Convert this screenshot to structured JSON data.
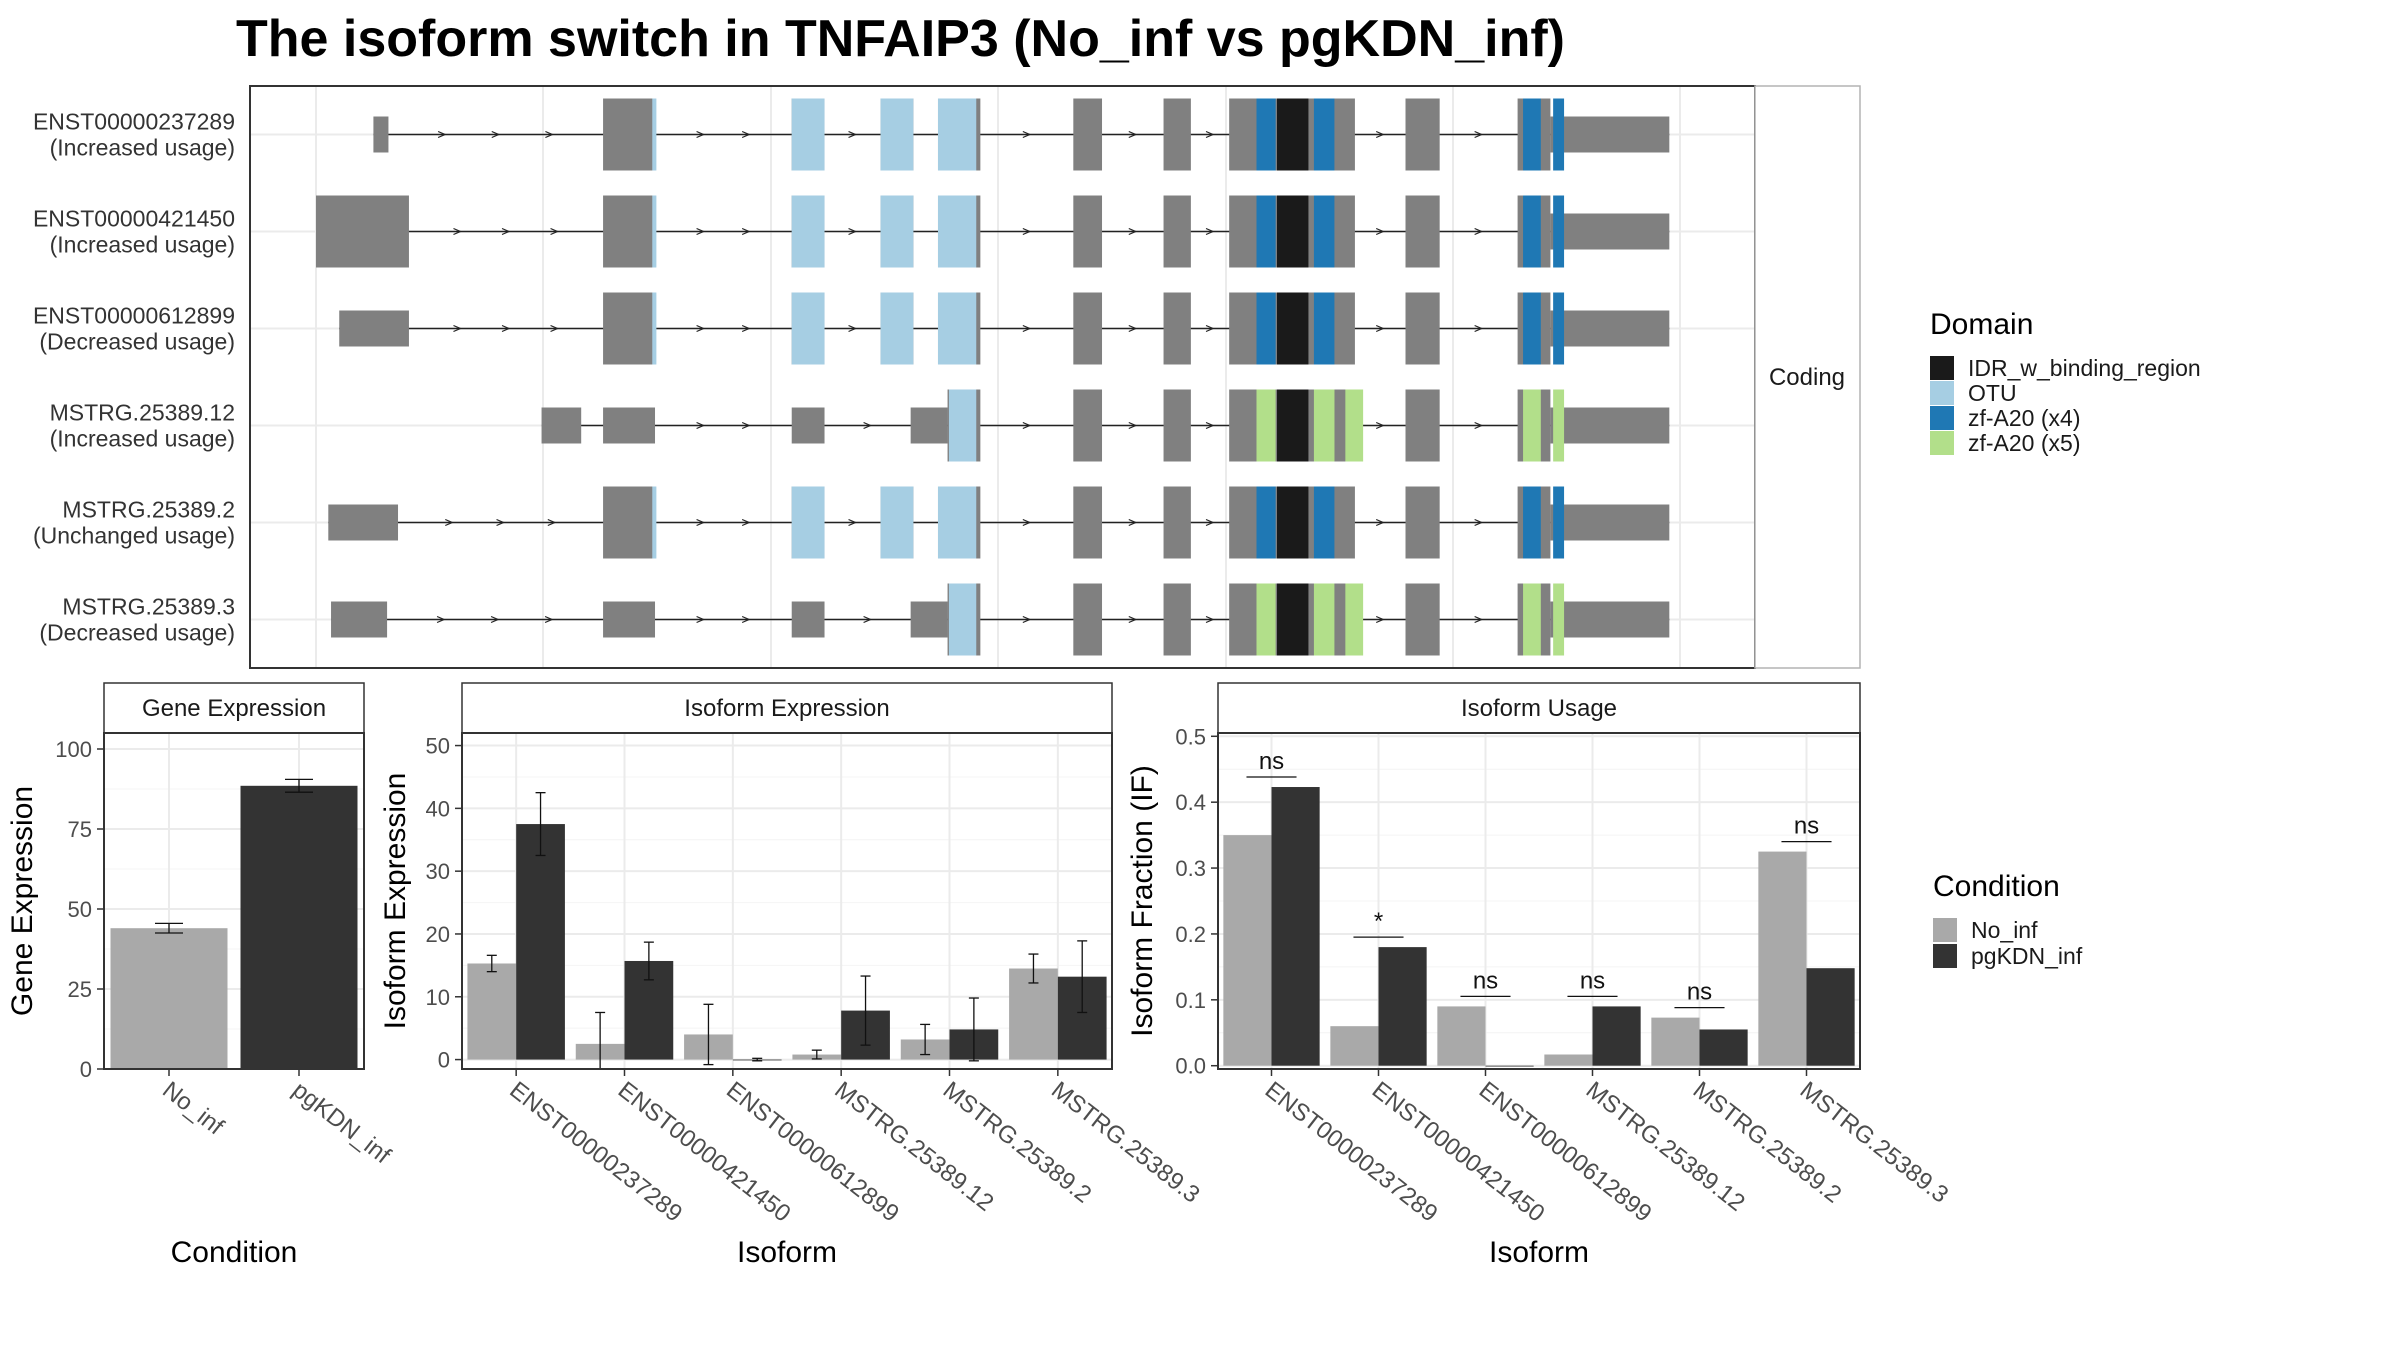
{
  "title": "The isoform switch in TNFAIP3 (No_inf vs pgKDN_inf)",
  "colors": {
    "no_inf": "#a9a9a9",
    "pgkdn_inf": "#333333",
    "exon": "#808080",
    "IDR_w_binding_region": "#1a1a1a",
    "OTU": "#a6cee3",
    "zf-A20 (x4)": "#1f78b4",
    "zf-A20 (x5)": "#b2df8a"
  },
  "chart_data": [
    {
      "type": "diagram",
      "name": "structure",
      "strip_label": "Coding",
      "genome_range": [
        0,
        1000
      ],
      "isoforms": [
        {
          "id": "ENST00000237289",
          "status": "(Increased usage)",
          "exons": [
            [
              42,
              53,
              0.5
            ],
            [
              210,
              248,
              1
            ],
            [
              348,
              372,
              1
            ],
            [
              413,
              437,
              1
            ],
            [
              455,
              486,
              1
            ],
            [
              554,
              575,
              1
            ],
            [
              620,
              640,
              1
            ],
            [
              668,
              760,
              1
            ],
            [
              797,
              822,
              1
            ],
            [
              879,
              903,
              1
            ],
            [
              903,
              990,
              0.5
            ]
          ],
          "domains": [
            [
              246,
              249,
              "OTU"
            ],
            [
              348,
              372,
              "OTU"
            ],
            [
              413,
              437,
              "OTU"
            ],
            [
              455,
              483,
              "OTU"
            ],
            [
              688,
              702,
              "zf-A20 (x4)"
            ],
            [
              703,
              726,
              "IDR_w_binding_region"
            ],
            [
              730,
              745,
              "zf-A20 (x4)"
            ],
            [
              883,
              896,
              "zf-A20 (x4)"
            ],
            [
              905,
              913,
              "zf-A20 (x4)"
            ]
          ]
        },
        {
          "id": "ENST00000421450",
          "status": "(Increased usage)",
          "exons": [
            [
              0,
              68,
              1
            ],
            [
              210,
              248,
              1
            ],
            [
              348,
              372,
              1
            ],
            [
              413,
              437,
              1
            ],
            [
              455,
              486,
              1
            ],
            [
              554,
              575,
              1
            ],
            [
              620,
              640,
              1
            ],
            [
              668,
              760,
              1
            ],
            [
              797,
              822,
              1
            ],
            [
              879,
              903,
              1
            ],
            [
              903,
              990,
              0.5
            ]
          ],
          "domains": [
            [
              246,
              249,
              "OTU"
            ],
            [
              348,
              372,
              "OTU"
            ],
            [
              413,
              437,
              "OTU"
            ],
            [
              455,
              483,
              "OTU"
            ],
            [
              688,
              702,
              "zf-A20 (x4)"
            ],
            [
              703,
              726,
              "IDR_w_binding_region"
            ],
            [
              730,
              745,
              "zf-A20 (x4)"
            ],
            [
              883,
              896,
              "zf-A20 (x4)"
            ],
            [
              905,
              913,
              "zf-A20 (x4)"
            ]
          ]
        },
        {
          "id": "ENST00000612899",
          "status": "(Decreased usage)",
          "exons": [
            [
              17,
              68,
              0.5
            ],
            [
              210,
              248,
              1
            ],
            [
              348,
              372,
              1
            ],
            [
              413,
              437,
              1
            ],
            [
              455,
              486,
              1
            ],
            [
              554,
              575,
              1
            ],
            [
              620,
              640,
              1
            ],
            [
              668,
              760,
              1
            ],
            [
              797,
              822,
              1
            ],
            [
              879,
              903,
              1
            ],
            [
              903,
              990,
              0.5
            ]
          ],
          "domains": [
            [
              246,
              249,
              "OTU"
            ],
            [
              348,
              372,
              "OTU"
            ],
            [
              413,
              437,
              "OTU"
            ],
            [
              455,
              483,
              "OTU"
            ],
            [
              688,
              702,
              "zf-A20 (x4)"
            ],
            [
              703,
              726,
              "IDR_w_binding_region"
            ],
            [
              730,
              745,
              "zf-A20 (x4)"
            ],
            [
              883,
              896,
              "zf-A20 (x4)"
            ],
            [
              905,
              913,
              "zf-A20 (x4)"
            ]
          ]
        },
        {
          "id": "MSTRG.25389.12",
          "status": "(Increased usage)",
          "exons": [
            [
              165,
              194,
              0.5
            ],
            [
              210,
              248,
              0.5
            ],
            [
              348,
              372,
              0.5
            ],
            [
              435,
              462,
              0.5
            ],
            [
              462,
              486,
              1
            ],
            [
              554,
              575,
              1
            ],
            [
              620,
              640,
              1
            ],
            [
              668,
              760,
              1
            ],
            [
              797,
              822,
              1
            ],
            [
              879,
              903,
              1
            ],
            [
              903,
              990,
              0.5
            ]
          ],
          "domains": [
            [
              463,
              483,
              "OTU"
            ],
            [
              688,
              702,
              "zf-A20 (x5)"
            ],
            [
              703,
              726,
              "IDR_w_binding_region"
            ],
            [
              730,
              745,
              "zf-A20 (x5)"
            ],
            [
              733,
              745,
              "zf-A20 (x5)"
            ],
            [
              753,
              766,
              "zf-A20 (x5)"
            ],
            [
              883,
              896,
              "zf-A20 (x5)"
            ],
            [
              905,
              913,
              "zf-A20 (x5)"
            ]
          ]
        },
        {
          "id": "MSTRG.25389.2",
          "status": "(Unchanged usage)",
          "exons": [
            [
              9,
              60,
              0.5
            ],
            [
              210,
              248,
              1
            ],
            [
              348,
              372,
              1
            ],
            [
              413,
              437,
              1
            ],
            [
              455,
              486,
              1
            ],
            [
              554,
              575,
              1
            ],
            [
              620,
              640,
              1
            ],
            [
              668,
              760,
              1
            ],
            [
              797,
              822,
              1
            ],
            [
              879,
              903,
              1
            ],
            [
              903,
              990,
              0.5
            ]
          ],
          "domains": [
            [
              246,
              249,
              "OTU"
            ],
            [
              348,
              372,
              "OTU"
            ],
            [
              413,
              437,
              "OTU"
            ],
            [
              455,
              483,
              "OTU"
            ],
            [
              688,
              702,
              "zf-A20 (x4)"
            ],
            [
              703,
              726,
              "IDR_w_binding_region"
            ],
            [
              730,
              745,
              "zf-A20 (x4)"
            ],
            [
              883,
              896,
              "zf-A20 (x4)"
            ],
            [
              905,
              913,
              "zf-A20 (x4)"
            ]
          ]
        },
        {
          "id": "MSTRG.25389.3",
          "status": "(Decreased usage)",
          "exons": [
            [
              11,
              52,
              0.5
            ],
            [
              210,
              248,
              0.5
            ],
            [
              348,
              372,
              0.5
            ],
            [
              435,
              462,
              0.5
            ],
            [
              462,
              486,
              1
            ],
            [
              554,
              575,
              1
            ],
            [
              620,
              640,
              1
            ],
            [
              668,
              760,
              1
            ],
            [
              797,
              822,
              1
            ],
            [
              879,
              903,
              1
            ],
            [
              903,
              990,
              0.5
            ]
          ],
          "domains": [
            [
              463,
              483,
              "OTU"
            ],
            [
              688,
              702,
              "zf-A20 (x5)"
            ],
            [
              703,
              726,
              "IDR_w_binding_region"
            ],
            [
              730,
              745,
              "zf-A20 (x5)"
            ],
            [
              753,
              766,
              "zf-A20 (x5)"
            ],
            [
              883,
              896,
              "zf-A20 (x5)"
            ],
            [
              905,
              913,
              "zf-A20 (x5)"
            ]
          ]
        }
      ],
      "legend": {
        "title": "Domain",
        "entries": [
          "IDR_w_binding_region",
          "OTU",
          "zf-A20 (x4)",
          "zf-A20 (x5)"
        ]
      }
    },
    {
      "type": "bar",
      "name": "gene",
      "strip_label": "Gene Expression",
      "xlabel": "Condition",
      "ylabel": "Gene Expression",
      "categories": [
        "No_inf",
        "pgKDN_inf"
      ],
      "values": [
        44,
        88.5
      ],
      "errors": [
        1.5,
        2
      ],
      "ylim": [
        0,
        105
      ],
      "yticks": [
        0,
        25,
        50,
        75,
        100
      ]
    },
    {
      "type": "bar",
      "name": "isoform_expression",
      "strip_label": "Isoform Expression",
      "xlabel": "Isoform",
      "ylabel": "Isoform Expression",
      "categories": [
        "ENST00000237289",
        "ENST00000421450",
        "ENST00000612899",
        "MSTRG.25389.12",
        "MSTRG.25389.2",
        "MSTRG.25389.3"
      ],
      "series": [
        {
          "name": "No_inf",
          "values": [
            15.3,
            2.5,
            4,
            0.8,
            3.2,
            14.5
          ],
          "errors": [
            1.3,
            5,
            4.8,
            0.7,
            2.4,
            2.3
          ]
        },
        {
          "name": "pgKDN_inf",
          "values": [
            37.5,
            15.7,
            0,
            7.8,
            4.8,
            13.2
          ],
          "errors": [
            5,
            3,
            0.2,
            5.5,
            5,
            5.7
          ]
        }
      ],
      "ylim": [
        -1.5,
        52
      ],
      "yticks": [
        0,
        10,
        20,
        30,
        40,
        50
      ]
    },
    {
      "type": "bar",
      "name": "isoform_usage",
      "strip_label": "Isoform Usage",
      "xlabel": "Isoform",
      "ylabel": "Isoform Fraction (IF)",
      "categories": [
        "ENST00000237289",
        "ENST00000421450",
        "ENST00000612899",
        "MSTRG.25389.12",
        "MSTRG.25389.2",
        "MSTRG.25389.3"
      ],
      "series": [
        {
          "name": "No_inf",
          "values": [
            0.35,
            0.06,
            0.09,
            0.017,
            0.073,
            0.325
          ]
        },
        {
          "name": "pgKDN_inf",
          "values": [
            0.423,
            0.18,
            0,
            0.09,
            0.055,
            0.148
          ]
        }
      ],
      "significance": [
        "ns",
        "*",
        "ns",
        "ns",
        "ns",
        "ns"
      ],
      "ylim": [
        -0.005,
        0.505
      ],
      "yticks": [
        0.0,
        0.1,
        0.2,
        0.3,
        0.4,
        0.5
      ],
      "ytick_labels": [
        "0.0",
        "0.1",
        "0.2",
        "0.3",
        "0.4",
        "0.5"
      ]
    }
  ],
  "condition_legend": {
    "title": "Condition",
    "entries": [
      "No_inf",
      "pgKDN_inf"
    ]
  }
}
